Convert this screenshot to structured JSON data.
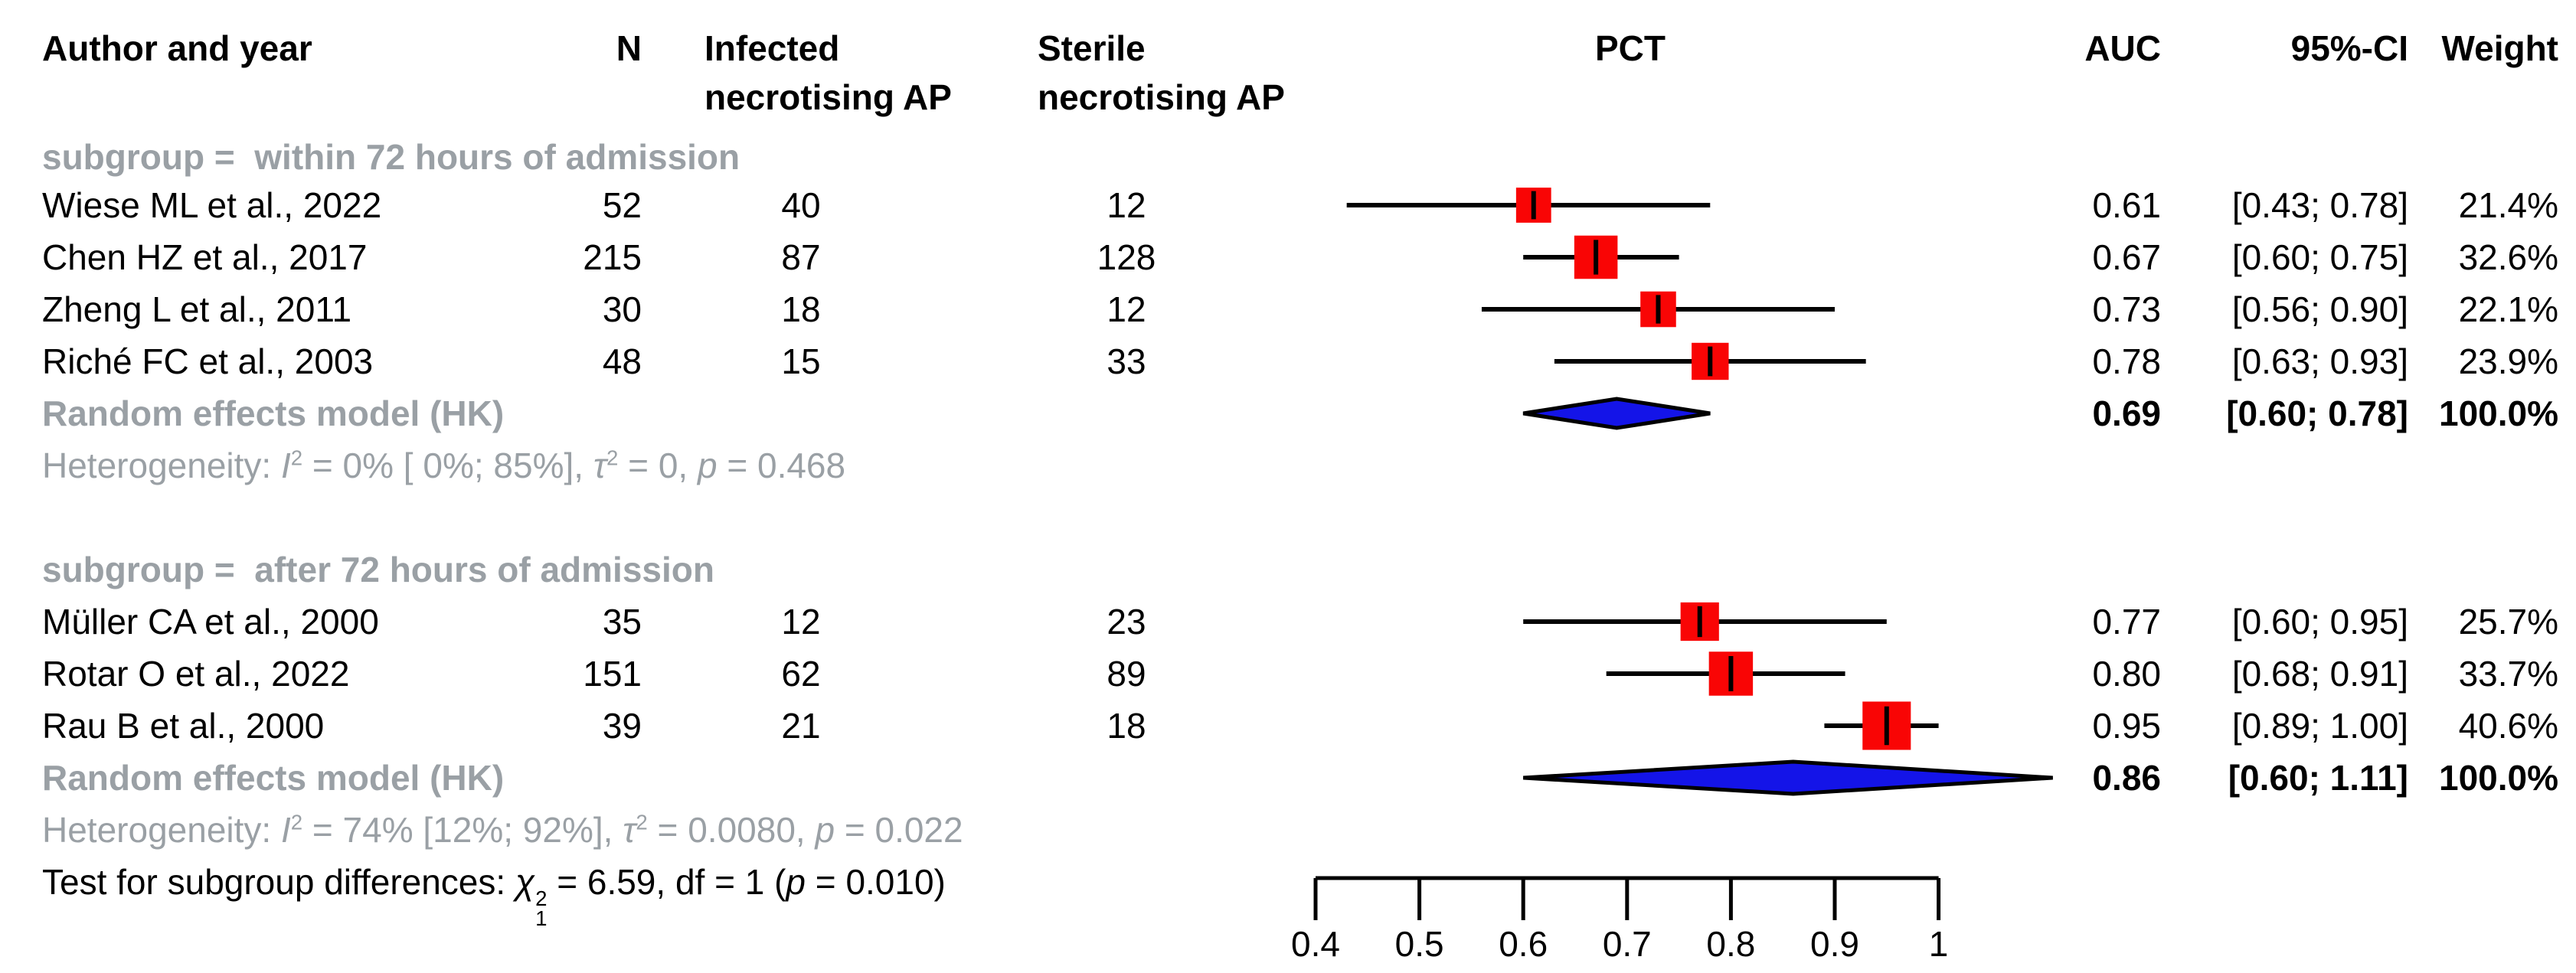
{
  "colors": {
    "square": "#f90505",
    "diamond": "#1414e8",
    "line": "#000000",
    "gray_text": "#9aa0a5",
    "black_text": "#000000"
  },
  "columns": {
    "author": "Author and year",
    "n": "N",
    "infected_line1": "Infected",
    "infected_line2": "necrotising AP",
    "sterile_line1": "Sterile",
    "sterile_line2": "necrotising AP",
    "pct": "PCT",
    "auc": "AUC",
    "ci": "95%-CI",
    "weight": "Weight"
  },
  "groups": [
    {
      "label": "subgroup =  within 72 hours of admission",
      "studies": [
        {
          "author": "Wiese ML et al., 2022",
          "n": "52",
          "infected": "40",
          "sterile": "12",
          "auc": "0.61",
          "ci": "[0.43; 0.78]",
          "weight": "21.4%"
        },
        {
          "author": "Chen HZ et al., 2017",
          "n": "215",
          "infected": "87",
          "sterile": "128",
          "auc": "0.67",
          "ci": "[0.60; 0.75]",
          "weight": "32.6%"
        },
        {
          "author": "Zheng L et al., 2011",
          "n": "30",
          "infected": "18",
          "sterile": "12",
          "auc": "0.73",
          "ci": "[0.56; 0.90]",
          "weight": "22.1%"
        },
        {
          "author": "Riché FC et al., 2003",
          "n": "48",
          "infected": "15",
          "sterile": "33",
          "auc": "0.78",
          "ci": "[0.63; 0.93]",
          "weight": "23.9%"
        }
      ],
      "pooled": {
        "label": "Random effects model (HK)",
        "auc": "0.69",
        "ci": "[0.60; 0.78]",
        "weight": "100.0%"
      },
      "het": {
        "prefix": "Heterogeneity: ",
        "I": "I",
        "I_sup": "2",
        "mid": " = 0% [ 0%; 85%], ",
        "tau": "τ",
        "tau_sup": "2",
        "mid2": " = 0, ",
        "p": "p",
        "tail": " = 0.468"
      }
    },
    {
      "label": "subgroup =  after 72 hours of admission",
      "studies": [
        {
          "author": "Müller CA et al., 2000",
          "n": "35",
          "infected": "12",
          "sterile": "23",
          "auc": "0.77",
          "ci": "[0.60; 0.95]",
          "weight": "25.7%"
        },
        {
          "author": "Rotar O et al., 2022",
          "n": "151",
          "infected": "62",
          "sterile": "89",
          "auc": "0.80",
          "ci": "[0.68; 0.91]",
          "weight": "33.7%"
        },
        {
          "author": "Rau B et al., 2000",
          "n": "39",
          "infected": "21",
          "sterile": "18",
          "auc": "0.95",
          "ci": "[0.89; 1.00]",
          "weight": "40.6%"
        }
      ],
      "pooled": {
        "label": "Random effects model (HK)",
        "auc": "0.86",
        "ci": "[0.60; 1.11]",
        "weight": "100.0%"
      },
      "het": {
        "prefix": "Heterogeneity: ",
        "I": "I",
        "I_sup": "2",
        "mid": " = 74% [12%; 92%], ",
        "tau": "τ",
        "tau_sup": "2",
        "mid2": " = 0.0080, ",
        "p": "p",
        "tail": " = 0.022"
      }
    }
  ],
  "test": {
    "prefix": "Test for subgroup differences: ",
    "chi": "χ",
    "chi_sup": "2",
    "chi_sub": "1",
    "mid": " = 6.59, df = 1 (",
    "p": "p",
    "tail": " = 0.010)"
  },
  "chart_data": {
    "type": "forest",
    "title": "PCT",
    "effect_measure": "AUC",
    "x_axis": {
      "ticks": [
        0.4,
        0.5,
        0.6,
        0.7,
        0.8,
        0.9,
        1
      ],
      "tick_labels": [
        "0.4",
        "0.5",
        "0.6",
        "0.7",
        "0.8",
        "0.9",
        "1"
      ],
      "range": [
        0.4,
        1.0
      ]
    },
    "groups": [
      {
        "label": "within 72 hours of admission",
        "studies": [
          {
            "name": "Wiese ML et al., 2022",
            "auc": 0.61,
            "ci": [
              0.43,
              0.78
            ],
            "weight": 21.4
          },
          {
            "name": "Chen HZ et al., 2017",
            "auc": 0.67,
            "ci": [
              0.6,
              0.75
            ],
            "weight": 32.6
          },
          {
            "name": "Zheng L et al., 2011",
            "auc": 0.73,
            "ci": [
              0.56,
              0.9
            ],
            "weight": 22.1
          },
          {
            "name": "Riché FC et al., 2003",
            "auc": 0.78,
            "ci": [
              0.63,
              0.93
            ],
            "weight": 23.9
          }
        ],
        "pooled": {
          "auc": 0.69,
          "ci": [
            0.6,
            0.78
          ],
          "weight": 100.0,
          "i2": "0%",
          "i2_ci": "[0%; 85%]",
          "tau2": "0",
          "p": "0.468"
        }
      },
      {
        "label": "after 72 hours of admission",
        "studies": [
          {
            "name": "Müller CA et al., 2000",
            "auc": 0.77,
            "ci": [
              0.6,
              0.95
            ],
            "weight": 25.7
          },
          {
            "name": "Rotar O et al., 2022",
            "auc": 0.8,
            "ci": [
              0.68,
              0.91
            ],
            "weight": 33.7
          },
          {
            "name": "Rau B et al., 2000",
            "auc": 0.95,
            "ci": [
              0.89,
              1.0
            ],
            "weight": 40.6
          }
        ],
        "pooled": {
          "auc": 0.86,
          "ci": [
            0.6,
            1.11
          ],
          "weight": 100.0,
          "i2": "74%",
          "i2_ci": "[12%; 92%]",
          "tau2": "0.0080",
          "p": "0.022"
        }
      }
    ],
    "subgroup_test": {
      "chi2": 6.59,
      "df": 1,
      "p": 0.01
    }
  }
}
